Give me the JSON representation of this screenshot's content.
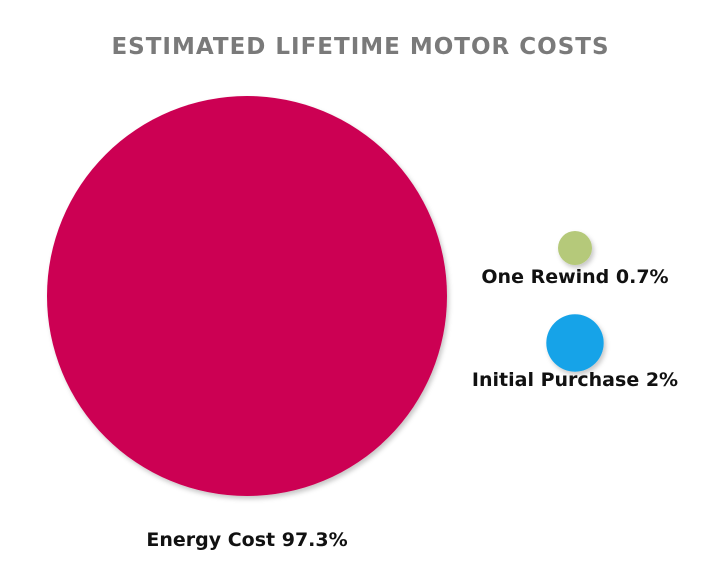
{
  "chart_data": {
    "type": "bubble",
    "title": "ESTIMATED LIFETIME MOTOR COSTS",
    "series": [
      {
        "name": "Energy Cost",
        "value": 97.3,
        "label": "Energy Cost 97.3%",
        "color": "#cc0052"
      },
      {
        "name": "One Rewind",
        "value": 0.7,
        "label": "One Rewind 0.7%",
        "color": "#b5c97a"
      },
      {
        "name": "Initial Purchase",
        "value": 2,
        "label": "Initial Purchase 2%",
        "color": "#16a3e8"
      }
    ],
    "legend": "none"
  }
}
